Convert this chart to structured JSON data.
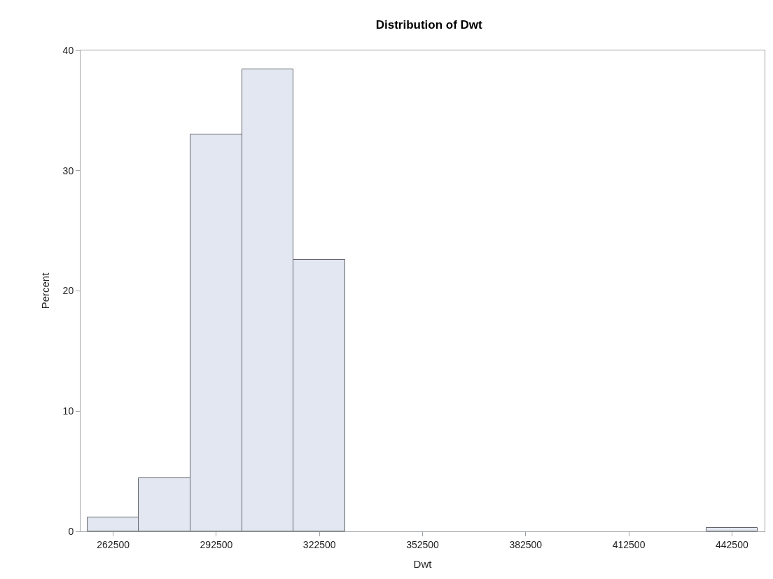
{
  "chart_data": {
    "type": "histogram",
    "title": "Distribution of Dwt",
    "xlabel": "Dwt",
    "ylabel": "Percent",
    "bins": [
      255000,
      270000,
      285000,
      300000,
      315000,
      330000,
      345000,
      360000,
      375000,
      390000,
      405000,
      420000,
      435000,
      450000
    ],
    "values": [
      1.15,
      4.4,
      33.0,
      38.4,
      22.6,
      0,
      0,
      0,
      0,
      0,
      0,
      0,
      0.3
    ],
    "color": "#e3e7f1",
    "xlim": [
      253000,
      452000
    ],
    "xticks": [
      262500,
      292500,
      322500,
      352500,
      382500,
      412500,
      442500
    ],
    "ylim": [
      0,
      40
    ],
    "yticks": [
      0,
      10,
      20,
      30,
      40
    ]
  }
}
